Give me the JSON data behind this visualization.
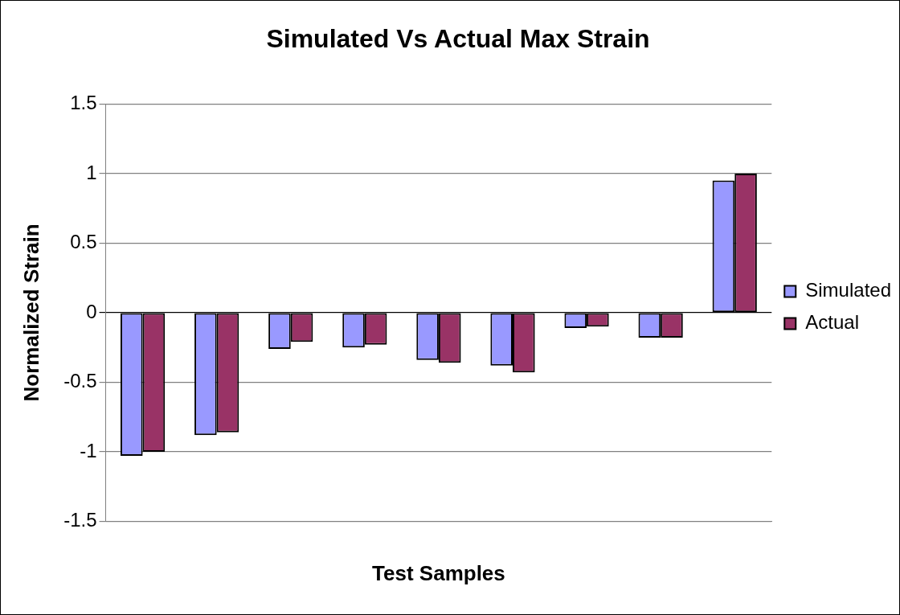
{
  "chart_data": {
    "type": "bar",
    "title": "Simulated Vs Actual Max Strain",
    "xlabel": "Test Samples",
    "ylabel": "Normalized Strain",
    "categories": [
      null,
      null,
      null,
      null,
      null,
      null,
      null,
      null,
      null
    ],
    "series": [
      {
        "name": "Simulated",
        "color": "#9999ff",
        "values": [
          -1.03,
          -0.88,
          -0.26,
          -0.25,
          -0.34,
          -0.38,
          -0.11,
          -0.18,
          0.95
        ]
      },
      {
        "name": "Actual",
        "color": "#993366",
        "values": [
          -1.0,
          -0.86,
          -0.21,
          -0.23,
          -0.36,
          -0.43,
          -0.1,
          -0.18,
          1.0
        ]
      }
    ],
    "ylim": [
      -1.5,
      1.5
    ],
    "yticks": [
      -1.5,
      -1,
      -0.5,
      0,
      0.5,
      1,
      1.5
    ],
    "grid": "y",
    "legend": "right"
  }
}
